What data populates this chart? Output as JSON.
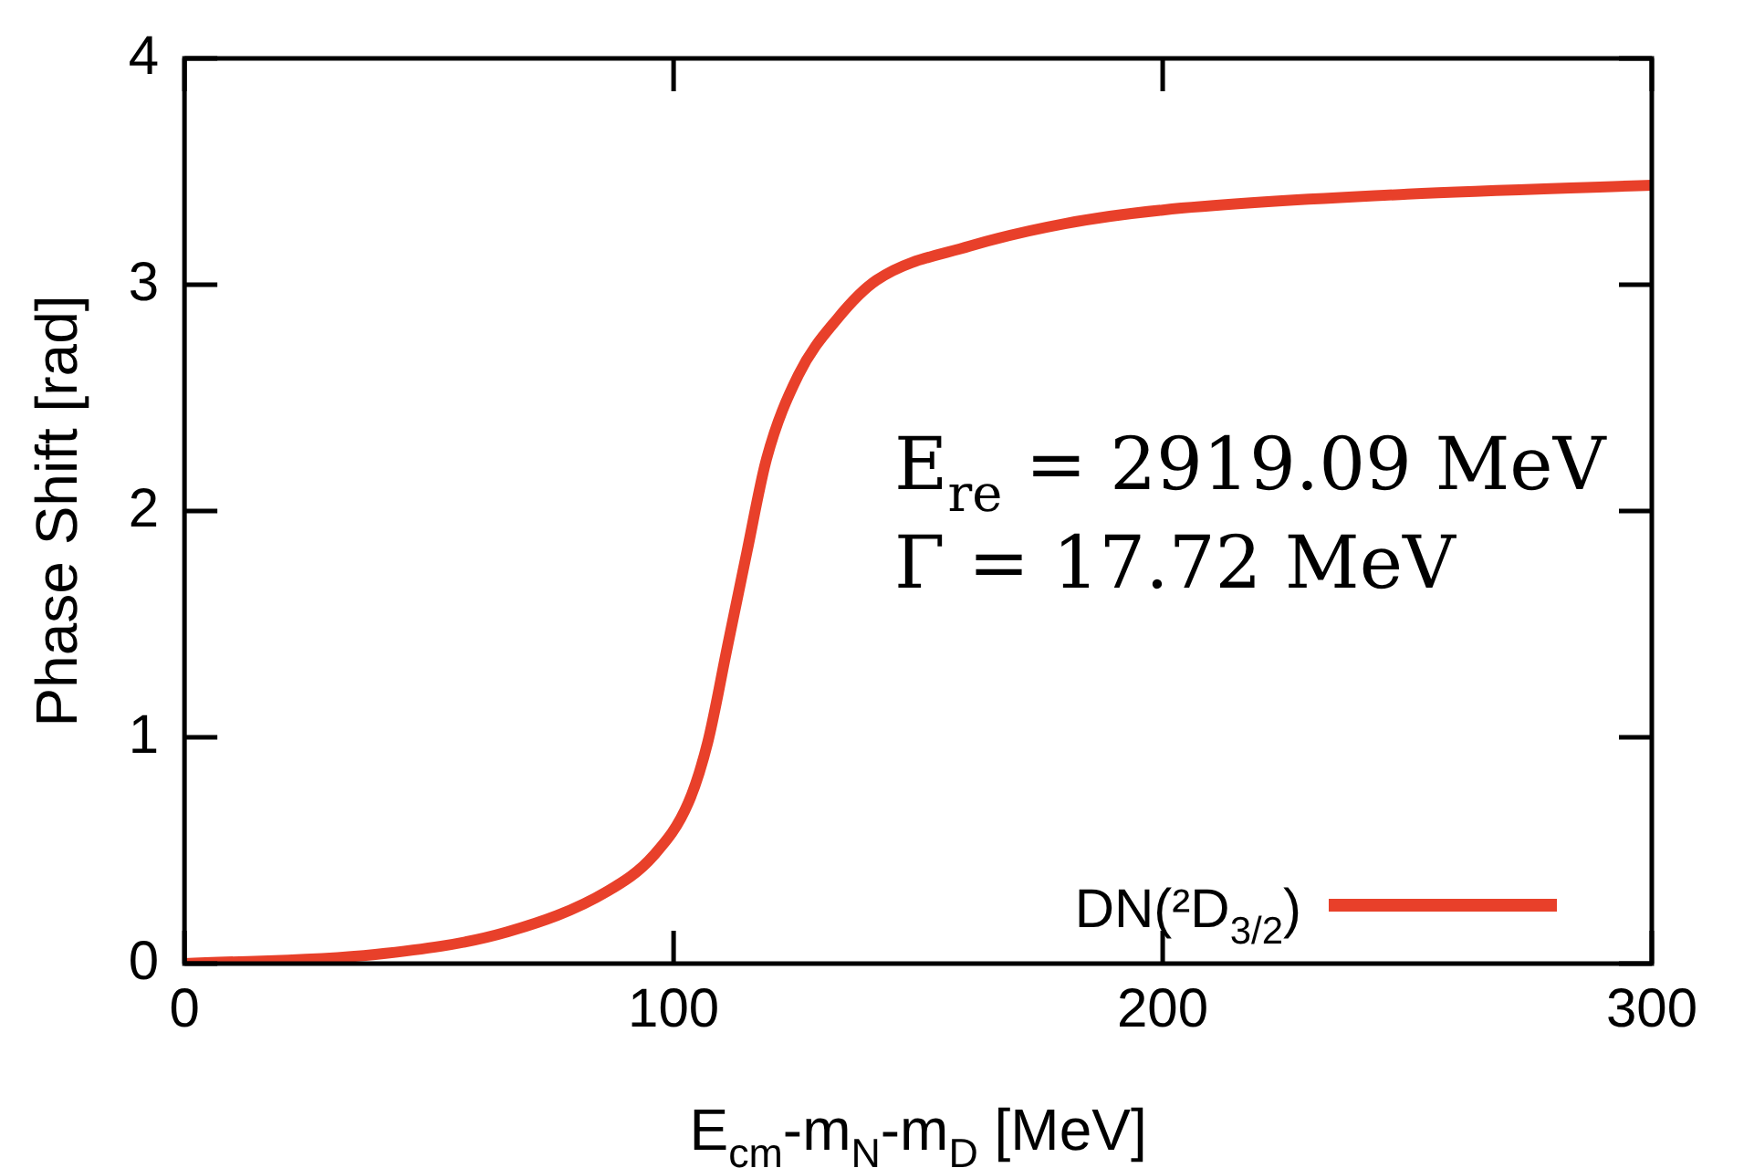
{
  "chart_data": {
    "type": "line",
    "xlabel": "E$_{cm}$-m$_{N}$-m$_{D}$ [MeV]",
    "ylabel": "Phase Shift [rad]",
    "xlim": [
      0,
      300
    ],
    "xticks": [
      0,
      100,
      200,
      300
    ],
    "ylim": [
      0,
      4
    ],
    "yticks": [
      0,
      1,
      2,
      3,
      4
    ],
    "grid": false,
    "legend": "bottom right",
    "marker": "none",
    "line_style": "solid",
    "annotations": [
      "E$_{re}$ = 2919.09 MeV",
      "Γ = 17.72 MeV"
    ],
    "series": [
      {
        "name": "DN(²D$_{3/2}$)",
        "color": "#e8402a",
        "x": [
          0,
          39,
          66,
          86.5,
          96,
          103,
          107,
          111,
          115,
          119,
          125.5,
          133.5,
          141.5,
          160.5,
          180,
          200,
          250,
          300
        ],
        "values": [
          0,
          0.04,
          0.14,
          0.32,
          0.48,
          0.71,
          0.98,
          1.4,
          1.82,
          2.23,
          2.6,
          2.85,
          3.02,
          3.17,
          3.27,
          3.33,
          3.4,
          3.44
        ]
      }
    ]
  }
}
